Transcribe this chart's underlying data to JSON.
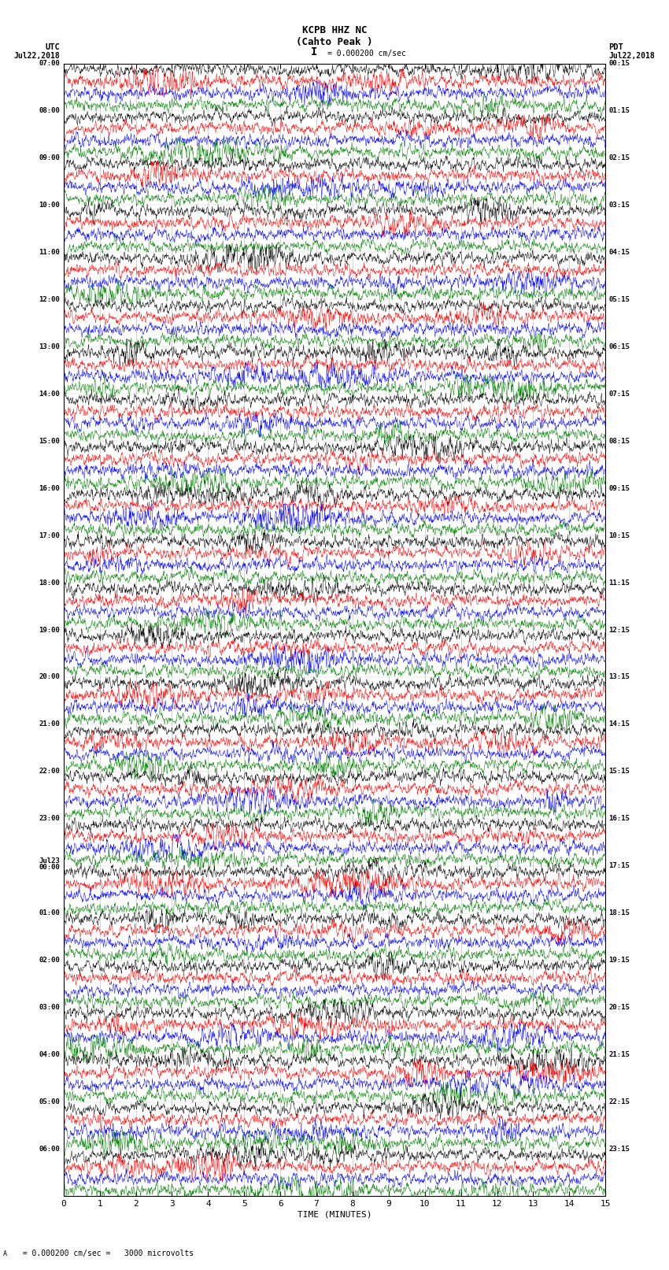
{
  "title_line1": "KCPB HHZ NC",
  "title_line2": "(Cahto Peak )",
  "scale_text": "= 0.000200 cm/sec",
  "bottom_text": "= 0.000200 cm/sec =   3000 microvolts",
  "utc_label": "UTC",
  "utc_date": "Jul22,2018",
  "pdt_label": "PDT",
  "pdt_date": "Jul22,2018",
  "xlabel": "TIME (MINUTES)",
  "xmin": 0,
  "xmax": 15,
  "xticks": [
    0,
    1,
    2,
    3,
    4,
    5,
    6,
    7,
    8,
    9,
    10,
    11,
    12,
    13,
    14,
    15
  ],
  "colors": [
    "black",
    "red",
    "blue",
    "green"
  ],
  "background": "white",
  "figwidth": 8.5,
  "figheight": 16.13,
  "dpi": 100,
  "utc_hours": [
    "07:00",
    "08:00",
    "09:00",
    "10:00",
    "11:00",
    "12:00",
    "13:00",
    "14:00",
    "15:00",
    "16:00",
    "17:00",
    "18:00",
    "19:00",
    "20:00",
    "21:00",
    "22:00",
    "23:00",
    "Jul23\n00:00",
    "01:00",
    "02:00",
    "03:00",
    "04:00",
    "05:00",
    "06:00"
  ],
  "utc_row_indices": [
    0,
    4,
    8,
    12,
    16,
    20,
    24,
    28,
    32,
    36,
    40,
    44,
    48,
    52,
    56,
    60,
    64,
    68,
    72,
    76,
    80,
    84,
    88,
    92
  ],
  "pdt_hours": [
    "00:15",
    "01:15",
    "02:15",
    "03:15",
    "04:15",
    "05:15",
    "06:15",
    "07:15",
    "08:15",
    "09:15",
    "10:15",
    "11:15",
    "12:15",
    "13:15",
    "14:15",
    "15:15",
    "16:15",
    "17:15",
    "18:15",
    "19:15",
    "20:15",
    "21:15",
    "22:15",
    "23:15"
  ],
  "pdt_row_indices": [
    0,
    4,
    8,
    12,
    16,
    20,
    24,
    28,
    32,
    36,
    40,
    44,
    48,
    52,
    56,
    60,
    64,
    68,
    72,
    76,
    80,
    84,
    88,
    92
  ]
}
